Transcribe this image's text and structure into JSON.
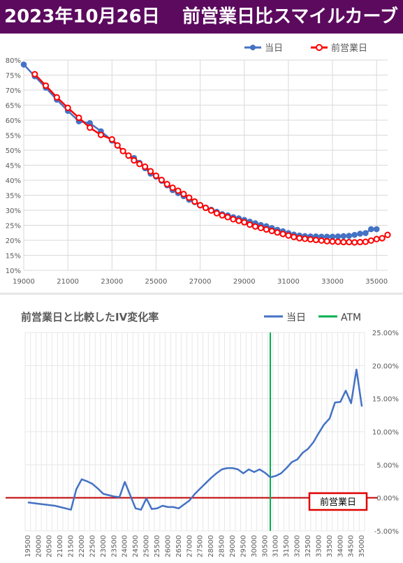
{
  "header": {
    "date_label": "2023年10月26日",
    "title": "前営業日比スマイルカーブ"
  },
  "colors": {
    "banner_bg": "#5b0a5e",
    "today_blue": "#4472c4",
    "prev_red": "#ff0000",
    "iv_line": "#4472c4",
    "atm_green": "#00b050",
    "zero_line": "#c00000"
  },
  "chart_data": [
    {
      "type": "line",
      "title": "",
      "xlabel": "",
      "ylabel": "",
      "xlim": [
        19000,
        35500
      ],
      "ylim": [
        0.1,
        0.8
      ],
      "x_ticks": [
        19000,
        21000,
        23000,
        25000,
        27000,
        29000,
        31000,
        33000,
        35000
      ],
      "x_tick_labels": [
        "19000",
        "21000",
        "23000",
        "25000",
        "27000",
        "29000",
        "31000",
        "33000",
        "35000"
      ],
      "y_ticks": [
        0.1,
        0.15,
        0.2,
        0.25,
        0.3,
        0.35,
        0.4,
        0.45,
        0.5,
        0.55,
        0.6,
        0.65,
        0.7,
        0.75,
        0.8
      ],
      "y_tick_labels": [
        "10%",
        "15%",
        "20%",
        "25%",
        "30%",
        "35%",
        "40%",
        "45%",
        "50%",
        "55%",
        "60%",
        "65%",
        "70%",
        "75%",
        "80%"
      ],
      "grid": true,
      "legend_position": "top-right",
      "series": [
        {
          "name": "当日",
          "color": "#4472c4",
          "x": [
            19000,
            19500,
            20000,
            20500,
            21000,
            21500,
            22000,
            22500,
            23000,
            23250,
            23500,
            23750,
            24000,
            24250,
            24500,
            24750,
            25000,
            25250,
            25500,
            25750,
            26000,
            26250,
            26500,
            26750,
            27000,
            27250,
            27500,
            27750,
            28000,
            28250,
            28500,
            28750,
            29000,
            29250,
            29500,
            29750,
            30000,
            30250,
            30500,
            30750,
            31000,
            31250,
            31500,
            31750,
            32000,
            32250,
            32500,
            32750,
            33000,
            33250,
            33500,
            33750,
            34000,
            34250,
            34500,
            34750,
            35000
          ],
          "values": [
            0.785,
            0.746,
            0.708,
            0.668,
            0.631,
            0.596,
            0.59,
            0.563,
            0.532,
            0.515,
            0.497,
            0.481,
            0.474,
            0.458,
            0.44,
            0.422,
            0.412,
            0.398,
            0.383,
            0.367,
            0.357,
            0.347,
            0.335,
            0.327,
            0.316,
            0.309,
            0.302,
            0.295,
            0.287,
            0.283,
            0.277,
            0.273,
            0.268,
            0.262,
            0.257,
            0.251,
            0.247,
            0.241,
            0.235,
            0.23,
            0.224,
            0.219,
            0.216,
            0.214,
            0.213,
            0.213,
            0.212,
            0.212,
            0.212,
            0.213,
            0.214,
            0.215,
            0.218,
            0.222,
            0.224,
            0.237,
            0.237
          ]
        },
        {
          "name": "前営業日",
          "color": "#ff0000",
          "x": [
            19500,
            20000,
            20500,
            21000,
            21500,
            22000,
            22500,
            23000,
            23250,
            23500,
            23750,
            24000,
            24250,
            24500,
            24750,
            25000,
            25250,
            25500,
            25750,
            26000,
            26250,
            26500,
            26750,
            27000,
            27250,
            27500,
            27750,
            28000,
            28250,
            28500,
            28750,
            29000,
            29250,
            29500,
            29750,
            30000,
            30250,
            30500,
            30750,
            31000,
            31250,
            31500,
            31750,
            32000,
            32250,
            32500,
            32750,
            33000,
            33250,
            33500,
            33750,
            34000,
            34250,
            34500,
            34750,
            35000,
            35250,
            35500
          ],
          "values": [
            0.753,
            0.715,
            0.676,
            0.641,
            0.608,
            0.575,
            0.551,
            0.536,
            0.516,
            0.497,
            0.482,
            0.466,
            0.454,
            0.445,
            0.43,
            0.415,
            0.401,
            0.387,
            0.375,
            0.365,
            0.354,
            0.342,
            0.329,
            0.317,
            0.308,
            0.299,
            0.29,
            0.283,
            0.277,
            0.27,
            0.265,
            0.26,
            0.252,
            0.246,
            0.241,
            0.236,
            0.231,
            0.226,
            0.221,
            0.216,
            0.211,
            0.207,
            0.205,
            0.203,
            0.201,
            0.199,
            0.197,
            0.196,
            0.195,
            0.194,
            0.194,
            0.193,
            0.194,
            0.195,
            0.199,
            0.204,
            0.207,
            0.218
          ]
        }
      ]
    },
    {
      "type": "line",
      "title": "前営業日と比較したIV変化率",
      "xlabel": "",
      "ylabel": "",
      "ylim": [
        -0.05,
        0.25
      ],
      "y_ticks": [
        -0.05,
        0.0,
        0.05,
        0.1,
        0.15,
        0.2,
        0.25
      ],
      "y_tick_labels": [
        "-5.00%",
        "0.00%",
        "5.00%",
        "10.00%",
        "15.00%",
        "20.00%",
        "25.00%"
      ],
      "categories": [
        "19500",
        "19750",
        "20000",
        "20250",
        "20500",
        "20750",
        "21000",
        "21250",
        "21500",
        "21750",
        "22000",
        "22250",
        "22500",
        "22750",
        "23000",
        "23250",
        "23500",
        "23750",
        "24000",
        "24250",
        "24500",
        "24750",
        "25000",
        "25250",
        "25500",
        "25750",
        "26000",
        "26250",
        "26500",
        "26750",
        "27000",
        "27250",
        "27500",
        "27750",
        "28000",
        "28250",
        "28500",
        "28750",
        "29000",
        "29250",
        "29500",
        "29750",
        "30000",
        "30250",
        "30500",
        "30750",
        "31000",
        "31250",
        "31500",
        "31750",
        "32000",
        "32250",
        "32500",
        "32750",
        "33000",
        "33250",
        "33500",
        "33750",
        "34000",
        "34250",
        "34500",
        "34750",
        "35000"
      ],
      "category_labels_shown": [
        "19500",
        "20000",
        "20500",
        "21000",
        "21500",
        "22000",
        "22500",
        "23000",
        "23500",
        "24000",
        "24500",
        "25000",
        "25500",
        "26000",
        "26500",
        "27000",
        "27500",
        "28000",
        "28500",
        "29000",
        "29500",
        "30000",
        "30500",
        "31000",
        "31500",
        "32000",
        "32500",
        "33000",
        "33500",
        "34000",
        "34500",
        "35000"
      ],
      "grid": true,
      "legend_position": "top-right",
      "atm_category": "30750",
      "reference_label": "前営業日",
      "series": [
        {
          "name": "当日",
          "color": "#4472c4",
          "values": [
            -0.007,
            -0.008,
            -0.009,
            -0.01,
            -0.011,
            -0.012,
            -0.014,
            -0.016,
            -0.018,
            0.013,
            0.028,
            0.025,
            0.021,
            0.014,
            0.006,
            0.004,
            0.002,
            0.001,
            0.024,
            0.004,
            -0.016,
            -0.018,
            -0.001,
            -0.017,
            -0.016,
            -0.012,
            -0.014,
            -0.014,
            -0.016,
            -0.01,
            -0.004,
            0.006,
            0.014,
            0.022,
            0.03,
            0.037,
            0.043,
            0.045,
            0.045,
            0.043,
            0.037,
            0.043,
            0.039,
            0.043,
            0.038,
            0.031,
            0.033,
            0.037,
            0.045,
            0.054,
            0.058,
            0.068,
            0.074,
            0.084,
            0.098,
            0.111,
            0.12,
            0.144,
            0.145,
            0.162,
            0.143,
            0.194,
            0.138
          ]
        },
        {
          "name": "ATM",
          "color": "#00b050"
        }
      ]
    }
  ]
}
